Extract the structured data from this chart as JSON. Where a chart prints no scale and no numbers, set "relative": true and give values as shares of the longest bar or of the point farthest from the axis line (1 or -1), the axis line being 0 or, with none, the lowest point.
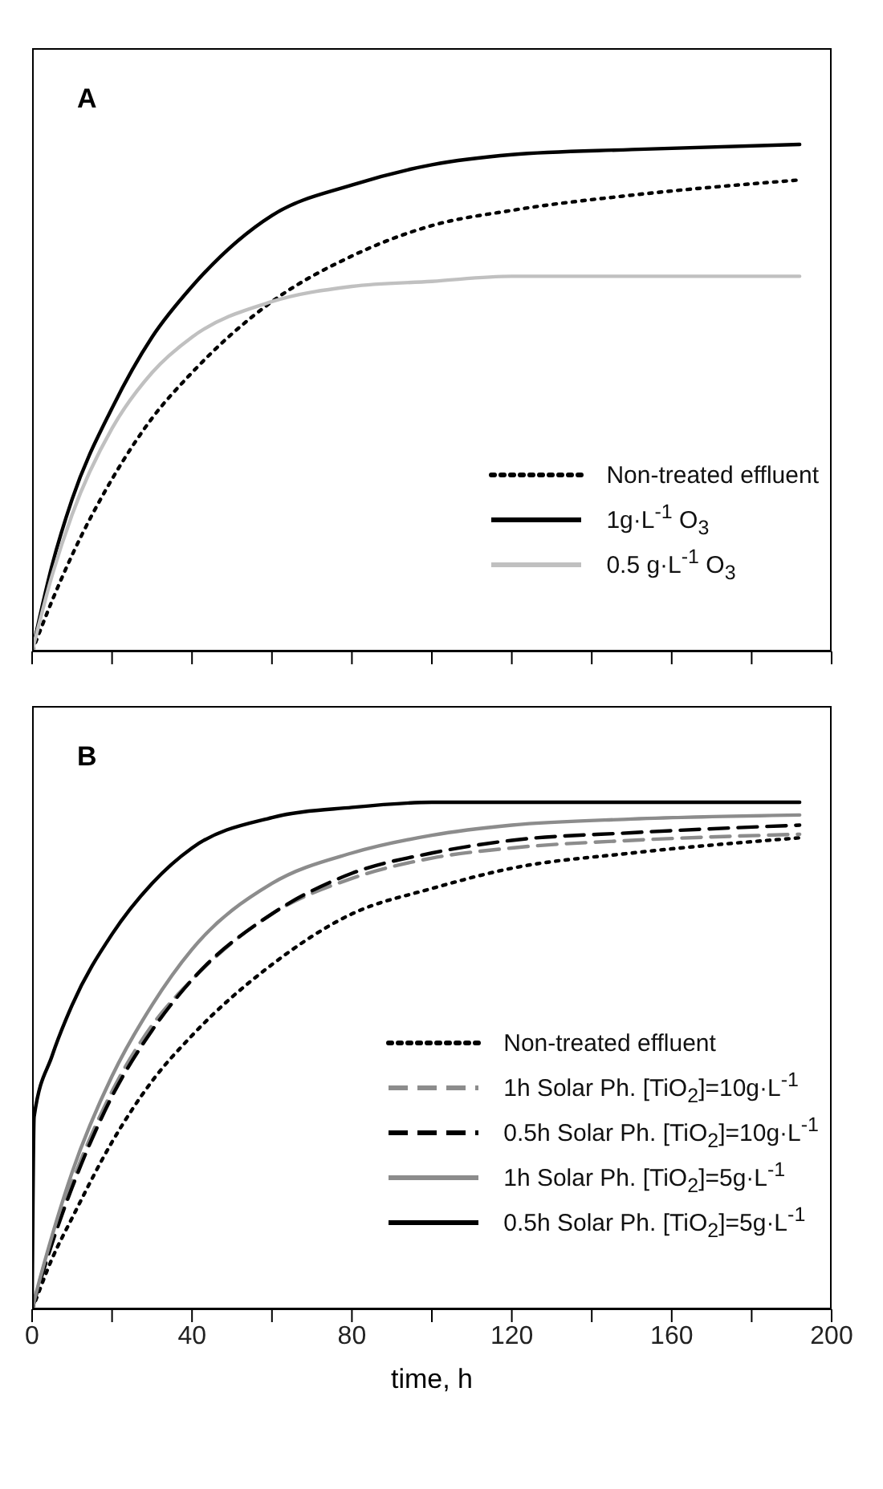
{
  "chart_data": [
    {
      "type": "line",
      "title": "A",
      "relative": true,
      "x": [
        0,
        5,
        10,
        20,
        30,
        40,
        60,
        80,
        100,
        120,
        150,
        192
      ],
      "xlim": [
        0,
        200
      ],
      "xticks": [
        0,
        {
          "value": 20,
          "label": null
        },
        40,
        {
          "value": 60,
          "label": null
        },
        80,
        {
          "value": 100,
          "label": null
        },
        120,
        {
          "value": 140,
          "label": null
        },
        160,
        {
          "value": 180,
          "label": null
        },
        200
      ],
      "tick_labels": false,
      "legend": "bottom right",
      "grid": false,
      "marker": "none",
      "series": [
        {
          "name": "Non-treated effluent",
          "color": "#000000",
          "line_style": "dotted",
          "values": [
            0,
            0.1,
            0.19,
            0.34,
            0.46,
            0.55,
            0.69,
            0.78,
            0.84,
            0.87,
            0.9,
            0.93
          ]
        },
        {
          "name": "1g·L$^{-1}$ O$_{3}$",
          "color": "#000000",
          "line_style": "solid",
          "values": [
            0,
            0.17,
            0.3,
            0.48,
            0.62,
            0.72,
            0.86,
            0.92,
            0.96,
            0.98,
            0.99,
            1
          ]
        },
        {
          "name": "0.5 g·L$^{-1}$ O$_{3}$",
          "color": "#c0c0c0",
          "line_style": "solid",
          "values": [
            0,
            0.15,
            0.27,
            0.44,
            0.55,
            0.62,
            0.69,
            0.72,
            0.73,
            0.74,
            0.74,
            0.74
          ]
        }
      ]
    },
    {
      "type": "line",
      "title": "B",
      "relative": true,
      "xlabel": "time, h",
      "x": [
        0,
        0.5,
        5,
        10,
        20,
        30,
        40,
        60,
        80,
        100,
        120,
        150,
        192
      ],
      "xlim": [
        0,
        200
      ],
      "xticks": [
        0,
        {
          "value": 20,
          "label": null
        },
        40,
        {
          "value": 60,
          "label": null
        },
        80,
        {
          "value": 100,
          "label": null
        },
        120,
        {
          "value": 140,
          "label": null
        },
        160,
        {
          "value": 180,
          "label": null
        },
        200
      ],
      "legend": "bottom right",
      "grid": false,
      "marker": "none",
      "series": [
        {
          "name": "Non-treated effluent",
          "color": "#000000",
          "line_style": "dotted",
          "values": [
            0,
            0.01,
            0.1,
            0.18,
            0.33,
            0.45,
            0.54,
            0.68,
            0.78,
            0.83,
            0.87,
            0.9,
            0.93
          ]
        },
        {
          "name": "1h Solar Ph. [TiO$_{2}$]=10g·L$^{-1}$",
          "color": "#8c8c8c",
          "line_style": "dashed",
          "values": [
            0,
            0.015,
            0.14,
            0.25,
            0.43,
            0.56,
            0.65,
            0.78,
            0.85,
            0.89,
            0.91,
            0.925,
            0.937
          ]
        },
        {
          "name": "0.5h Solar Ph. [TiO$_{2}$]=10g·L$^{-1}$",
          "color": "#000000",
          "line_style": "dashed",
          "values": [
            0,
            0.014,
            0.13,
            0.24,
            0.42,
            0.55,
            0.65,
            0.78,
            0.86,
            0.9,
            0.925,
            0.94,
            0.955
          ]
        },
        {
          "name": "1h Solar Ph. [TiO$_{2}$]=5g·L$^{-1}$",
          "color": "#8c8c8c",
          "line_style": "solid",
          "values": [
            0,
            0.016,
            0.145,
            0.27,
            0.46,
            0.6,
            0.71,
            0.84,
            0.9,
            0.935,
            0.955,
            0.967,
            0.975
          ]
        },
        {
          "name": "0.5h Solar Ph. [TiO$_{2}$]=5g·L$^{-1}$",
          "color": "#000000",
          "line_style": "solid",
          "values": [
            0,
            0.38,
            0.5,
            0.6,
            0.74,
            0.84,
            0.91,
            0.97,
            0.99,
            1,
            1,
            1,
            1
          ]
        }
      ]
    }
  ]
}
